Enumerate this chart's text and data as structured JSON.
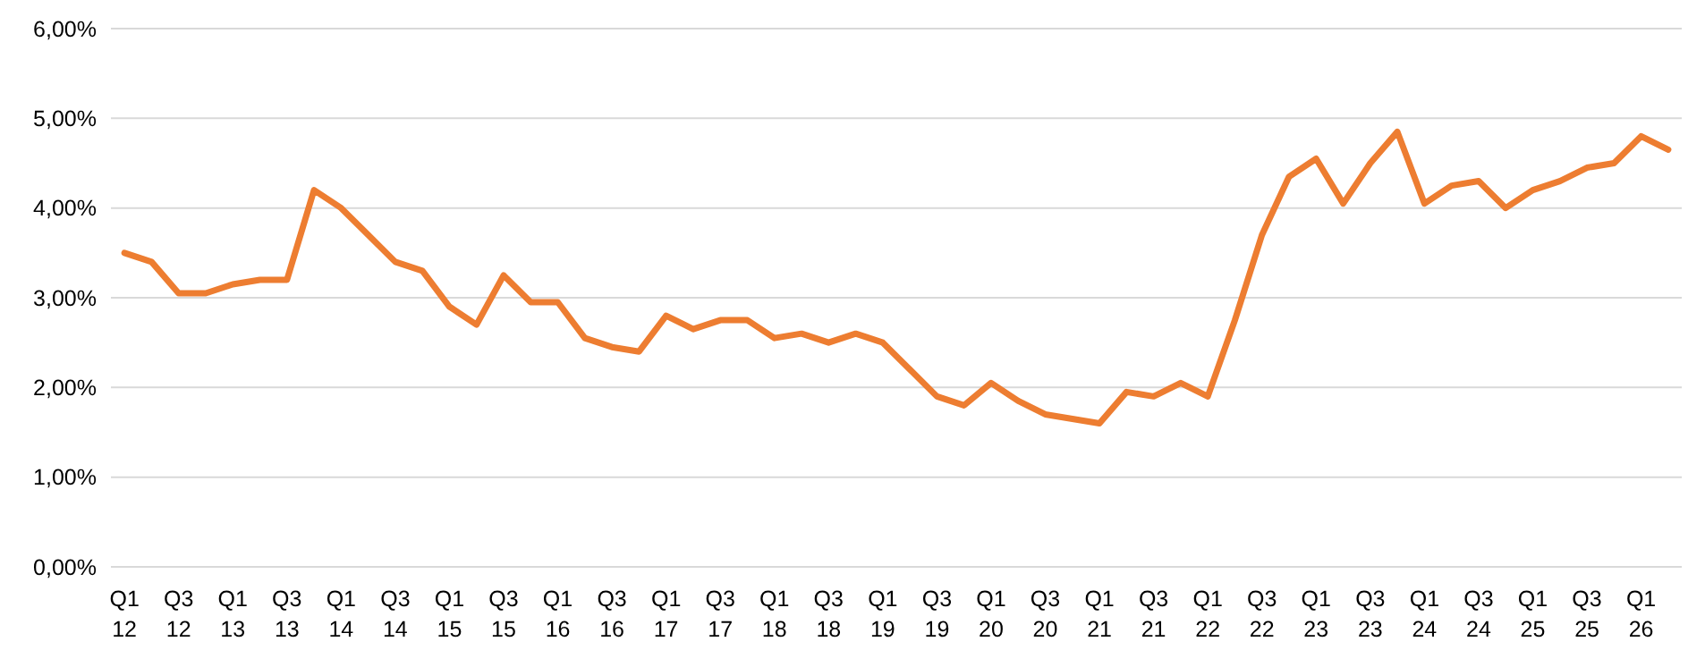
{
  "chart_data": {
    "type": "line",
    "categories": [
      "Q1\n12",
      null,
      "Q3\n12",
      null,
      "Q1\n13",
      null,
      "Q3\n13",
      null,
      "Q1\n14",
      null,
      "Q3\n14",
      null,
      "Q1\n15",
      null,
      "Q3\n15",
      null,
      "Q1\n16",
      null,
      "Q3\n16",
      null,
      "Q1\n17",
      null,
      "Q3\n17",
      null,
      "Q1\n18",
      null,
      "Q3\n18",
      null,
      "Q1\n19",
      null,
      "Q3\n19",
      null,
      "Q1\n20",
      null,
      "Q3\n20",
      null,
      "Q1\n21",
      null,
      "Q3\n21",
      null,
      "Q1\n22",
      null,
      "Q3\n22",
      null,
      "Q1\n23",
      null,
      "Q3\n23",
      null,
      "Q1\n24",
      null,
      "Q3\n24",
      null,
      "Q1\n25",
      null,
      "Q3\n25",
      null,
      "Q1\n26",
      null
    ],
    "series": [
      {
        "color": "#ed7d31",
        "values": [
          3.5,
          3.4,
          3.05,
          3.05,
          3.15,
          3.2,
          3.2,
          4.2,
          4.0,
          3.7,
          3.4,
          3.3,
          2.9,
          2.7,
          3.25,
          2.95,
          2.95,
          2.55,
          2.45,
          2.4,
          2.8,
          2.65,
          2.75,
          2.75,
          2.55,
          2.6,
          2.5,
          2.6,
          2.5,
          2.2,
          1.9,
          1.8,
          2.05,
          1.85,
          1.7,
          1.65,
          1.6,
          1.95,
          1.9,
          2.05,
          1.9,
          2.75,
          3.7,
          4.35,
          4.55,
          4.05,
          4.5,
          4.85,
          4.05,
          4.25,
          4.3,
          4.0,
          4.2,
          4.3,
          4.45,
          4.5,
          4.8,
          4.65
        ]
      }
    ],
    "ylim": [
      0,
      6
    ],
    "yticks": [
      {
        "value": 0,
        "label": "0,00%"
      },
      {
        "value": 1,
        "label": "1,00%"
      },
      {
        "value": 2,
        "label": "2,00%"
      },
      {
        "value": 3,
        "label": "3,00%"
      },
      {
        "value": 4,
        "label": "4,00%"
      },
      {
        "value": 5,
        "label": "5,00%"
      },
      {
        "value": 6,
        "label": "6,00%"
      }
    ],
    "grid": "y",
    "marker": "none",
    "line_style": "solid"
  }
}
